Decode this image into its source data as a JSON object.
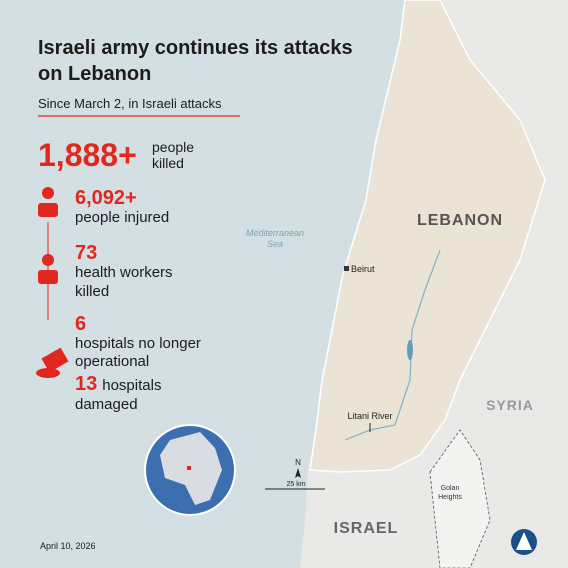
{
  "header": {
    "title": [
      "Israeli army continues its attacks",
      "on Lebanon"
    ],
    "subtitle": "Since March 2, in Israeli attacks"
  },
  "stats": [
    {
      "number": "1,888+",
      "text": [
        "people",
        "killed"
      ]
    },
    {
      "number": "6,092+",
      "text": [
        "people injured"
      ]
    },
    {
      "number": "73",
      "text": [
        "health workers",
        "killed"
      ]
    },
    {
      "number": "6",
      "text": [
        "hospitals no longer",
        "operational"
      ]
    },
    {
      "number": "13",
      "text": [
        "hospitals",
        "damaged"
      ]
    }
  ],
  "map": {
    "sea": [
      "Mediterranean",
      "Sea"
    ],
    "countries": [
      "LEBANON",
      "SYRIA",
      "ISRAEL"
    ],
    "places": [
      "Beirut",
      "Litani River"
    ],
    "region": [
      "Golan",
      "Heights"
    ],
    "north": "N",
    "scale": "25 km"
  },
  "footer": {
    "date": "April 10, 2026"
  }
}
